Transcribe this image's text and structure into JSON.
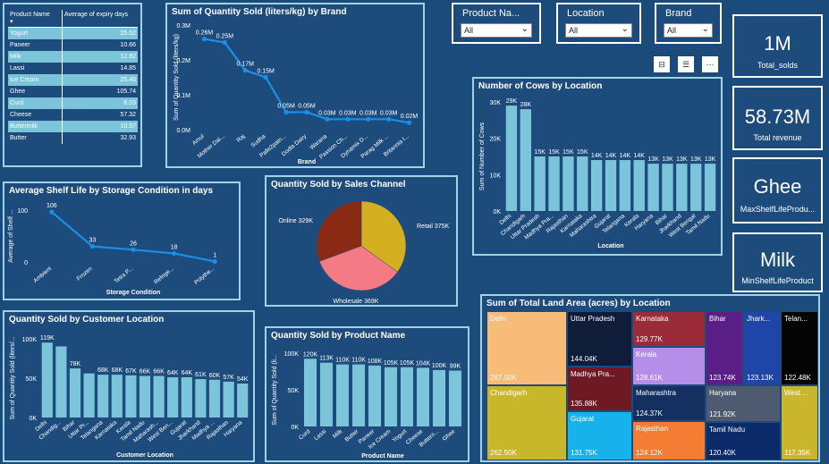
{
  "expiry_table": {
    "col1": "Product Name",
    "col2": "Average of expiry days",
    "sort_icon": "sort-desc-icon",
    "rows": [
      {
        "name": "Yogurt",
        "value": "25.52",
        "hl": true
      },
      {
        "name": "Paneer",
        "value": "10.66",
        "hl": false
      },
      {
        "name": "Milk",
        "value": "12.92",
        "hl": true
      },
      {
        "name": "Lassi",
        "value": "14.85",
        "hl": false
      },
      {
        "name": "Ice Cream",
        "value": "25.46",
        "hl": true
      },
      {
        "name": "Ghee",
        "value": "105.74",
        "hl": false
      },
      {
        "name": "Curd",
        "value": "6.03",
        "hl": true
      },
      {
        "name": "Cheese",
        "value": "57.32",
        "hl": false
      },
      {
        "name": "Buttermilk",
        "value": "10.57",
        "hl": true
      },
      {
        "name": "Butter",
        "value": "32.93",
        "hl": false
      }
    ]
  },
  "slicers": {
    "product": {
      "label": "Product Na...",
      "value": "All"
    },
    "location": {
      "label": "Location",
      "value": "All"
    },
    "brand": {
      "label": "Brand",
      "value": "All"
    }
  },
  "kpis": [
    {
      "value": "1M",
      "label": "Total_solds"
    },
    {
      "value": "58.73M",
      "label": "Total revenue"
    },
    {
      "value": "Ghee",
      "label": "MaxShelfLifeProdu..."
    },
    {
      "value": "Milk",
      "label": "MinShelfLifeProduct"
    }
  ],
  "chart_data": [
    {
      "id": "brand",
      "type": "line",
      "title": "Sum of Quantity Sold (liters/kg) by Brand",
      "xlabel": "Brand",
      "ylabel": "Sum of Quantity Sold (liters/kg)",
      "categories": [
        "Amul",
        "Mother Dai...",
        "Raj",
        "Sudha",
        "Palle2patn...",
        "Dodla Dairy",
        "Warana",
        "Passion Ch...",
        "Dynamix D...",
        "Parag Milk ...",
        "Britannia I..."
      ],
      "values": [
        0.26,
        0.25,
        0.17,
        0.15,
        0.05,
        0.05,
        0.03,
        0.03,
        0.03,
        0.03,
        0.02
      ],
      "data_labels": [
        "0.26M",
        "0.25M",
        "0.17M",
        "0.15M",
        "0.05M",
        "0.05M",
        "0.03M",
        "0.03M",
        "0.03M",
        "0.03M",
        "0.02M"
      ],
      "yticks": [
        "0.0M",
        "0.1M",
        "0.2M",
        "0.3M"
      ],
      "ylim": [
        0,
        0.3
      ]
    },
    {
      "id": "cows",
      "type": "bar",
      "title": "Number of Cows by Location",
      "xlabel": "Location",
      "ylabel": "Sum of Number of Cows",
      "categories": [
        "Delhi",
        "Chandigarh",
        "Uttar Pradesh",
        "Madhya Pra...",
        "Rajasthan",
        "Karnataka",
        "Maharashtra",
        "Gujarat",
        "Telangana",
        "Kerala",
        "Haryana",
        "Bihar",
        "Jharkhand",
        "West Bengal",
        "Tamil Nadu"
      ],
      "values": [
        29,
        28,
        15,
        15,
        15,
        15,
        14,
        14,
        14,
        14,
        13,
        13,
        13,
        13,
        13
      ],
      "data_labels": [
        "29K",
        "28K",
        "15K",
        "15K",
        "15K",
        "15K",
        "14K",
        "14K",
        "14K",
        "14K",
        "13K",
        "13K",
        "13K",
        "13K",
        "13K"
      ],
      "yticks": [
        "0K",
        "10K",
        "20K",
        "30K"
      ],
      "ylim": [
        0,
        30
      ]
    },
    {
      "id": "shelf",
      "type": "line",
      "title": "Average Shelf Life by Storage Condition in days",
      "xlabel": "Storage Condition",
      "ylabel": "Average of Shelf ...",
      "categories": [
        "Ambient",
        "Frozen",
        "Tetra P...",
        "Refrige...",
        "Polythe..."
      ],
      "values": [
        106,
        33,
        26,
        18,
        1
      ],
      "data_labels": [
        "106",
        "33",
        "26",
        "18",
        "1"
      ],
      "yticks": [
        "0",
        "100"
      ],
      "ylim": [
        0,
        110
      ]
    },
    {
      "id": "channel",
      "type": "pie",
      "title": "Quantity Sold by Sales Channel",
      "categories": [
        "Retail",
        "Wholesale",
        "Online"
      ],
      "values": [
        375,
        369,
        329
      ],
      "data_labels": [
        "Retail 375K",
        "Wholesale 369K",
        "Online 329K"
      ],
      "colors": [
        "#d4b020",
        "#f47a86",
        "#8a2a14"
      ]
    },
    {
      "id": "custloc",
      "type": "bar",
      "title": "Quantity Sold by Customer Location",
      "xlabel": "Customer Location",
      "ylabel": "Sum of Quantity Sold (liters/...",
      "categories": [
        "Delhi",
        "Chandig...",
        "Bihar",
        "Uttar Pr...",
        "Telangana",
        "Karnataka",
        "Kerala",
        "Tamil Nadu",
        "Maharash...",
        "West Ben...",
        "Gujarat",
        "Jharkhand",
        "Madhya ...",
        "Rajasthan",
        "Haryana"
      ],
      "values": [
        119,
        113,
        78,
        70,
        68,
        68,
        67,
        66,
        66,
        64,
        64,
        61,
        60,
        57,
        54
      ],
      "data_labels": [
        "119K",
        "",
        "78K",
        "",
        "68K",
        "68K",
        "67K",
        "66K",
        "66K",
        "64K",
        "64K",
        "61K",
        "60K",
        "57K",
        "54K"
      ],
      "yticks": [
        "0K",
        "50K",
        "100K"
      ],
      "ylim": [
        0,
        125
      ]
    },
    {
      "id": "product",
      "type": "bar",
      "title": "Quantity Sold by Product Name",
      "xlabel": "Product Name",
      "ylabel": "Sum of Quantity Sold (li...",
      "categories": [
        "Curd",
        "Lassi",
        "Milk",
        "Butter",
        "Paneer",
        "Ice Cream",
        "Yogurt",
        "Cheese",
        "Buttern...",
        "Ghee"
      ],
      "values": [
        120,
        113,
        110,
        110,
        108,
        105,
        105,
        104,
        100,
        99
      ],
      "data_labels": [
        "120K",
        "113K",
        "110K",
        "110K",
        "108K",
        "105K",
        "105K",
        "104K",
        "100K",
        "99K"
      ],
      "yticks": [
        "0K",
        "50K",
        "100K"
      ],
      "ylim": [
        0,
        130
      ]
    },
    {
      "id": "land",
      "type": "treemap",
      "title": "Sum of Total Land Area (acres) by Location",
      "items": [
        {
          "name": "Delhi",
          "value": "267.50K",
          "color": "#f9bc78"
        },
        {
          "name": "Chandigarh",
          "value": "262.50K",
          "color": "#c8b72a"
        },
        {
          "name": "Uttar Pradesh",
          "value": "144.04K",
          "color": "#0f1d3b"
        },
        {
          "name": "Madhya Pra...",
          "value": "135.88K",
          "color": "#6e1a24"
        },
        {
          "name": "Gujarat",
          "value": "131.75K",
          "color": "#17b1eb"
        },
        {
          "name": "Karnataka",
          "value": "129.77K",
          "color": "#9c2b3a"
        },
        {
          "name": "Kerala",
          "value": "128.61K",
          "color": "#b48ee8"
        },
        {
          "name": "Maharashtra",
          "value": "124.37K",
          "color": "#143060"
        },
        {
          "name": "Rajasthan",
          "value": "124.12K",
          "color": "#f47d33"
        },
        {
          "name": "Bihar",
          "value": "123.74K",
          "color": "#5a1f86"
        },
        {
          "name": "Jhark...",
          "value": "123.13K",
          "color": "#1f45a8"
        },
        {
          "name": "Telan...",
          "value": "122.48K",
          "color": "#050505"
        },
        {
          "name": "Haryana",
          "value": "121.92K",
          "color": "#4e5a70"
        },
        {
          "name": "Tamil Nadu",
          "value": "120.40K",
          "color": "#0b2a6a"
        },
        {
          "name": "West ...",
          "value": "117.35K",
          "color": "#c9b62d"
        }
      ]
    }
  ]
}
